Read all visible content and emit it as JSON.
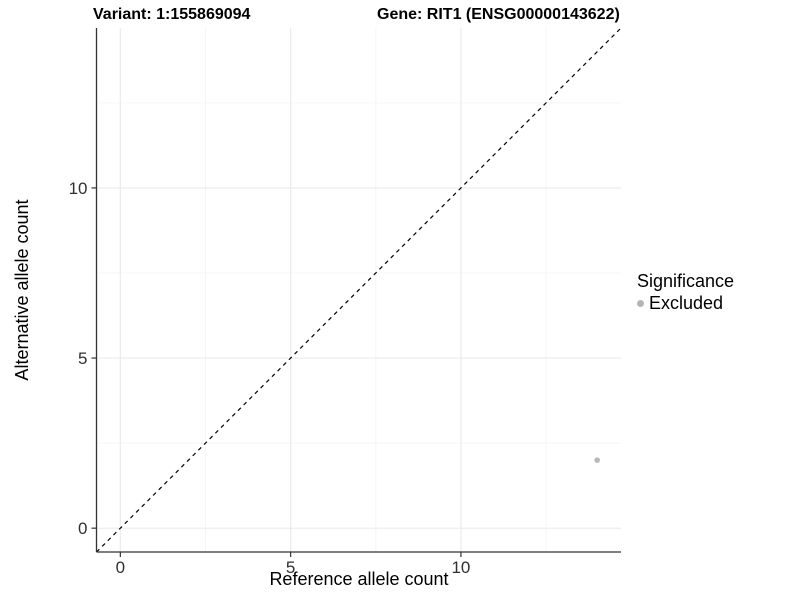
{
  "chart_data": {
    "type": "scatter",
    "titles": {
      "left": "Variant: 1:155869094",
      "right": "Gene: RIT1 (ENSG00000143622)"
    },
    "xlabel": "Reference allele count",
    "ylabel": "Alternative allele count",
    "xlim": [
      -0.7,
      14.7
    ],
    "ylim": [
      -0.7,
      14.7
    ],
    "x_major_ticks": [
      0,
      5,
      10
    ],
    "y_major_ticks": [
      0,
      5,
      10
    ],
    "x_minor_gridlines": [
      2.5,
      7.5,
      12.5
    ],
    "y_minor_gridlines": [
      2.5,
      7.5,
      12.5
    ],
    "grid": true,
    "legend_position": "right",
    "reference_line": {
      "slope": 1,
      "intercept": 0,
      "style": "dashed",
      "color": "#000000"
    },
    "series": [
      {
        "name": "Excluded",
        "color": "#b8b8b8",
        "points": [
          {
            "x": 14,
            "y": 2
          }
        ]
      }
    ],
    "legend": {
      "title": "Significance",
      "items": [
        {
          "label": "Excluded",
          "color": "#b5b5b5"
        }
      ]
    },
    "colors": {
      "background": "#ffffff",
      "gridline_major": "#ebebeb",
      "gridline_minor": "#f5f5f5",
      "axis_line": "#333333",
      "tick_mark": "#333333",
      "tick_label": "#303030",
      "title_text": "#000000"
    }
  }
}
